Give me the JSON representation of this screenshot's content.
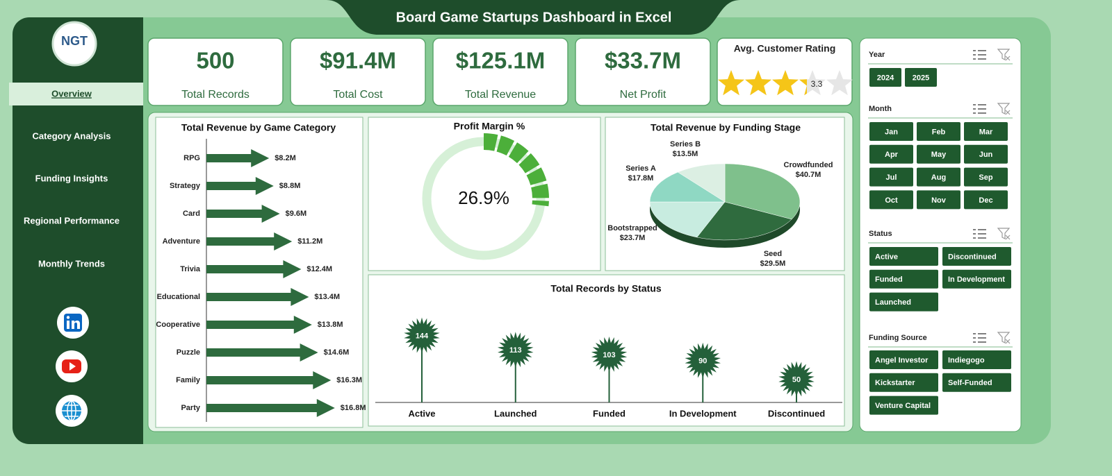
{
  "header": {
    "title": "Board Game Startups Dashboard in Excel",
    "logo": "NGT"
  },
  "nav": [
    "Overview",
    "Category Analysis",
    "Funding Insights",
    "Regional Performance",
    "Monthly Trends"
  ],
  "kpis": [
    {
      "value": "500",
      "label": "Total Records"
    },
    {
      "value": "$91.4M",
      "label": "Total Cost"
    },
    {
      "value": "$125.1M",
      "label": "Total Revenue"
    },
    {
      "value": "$33.7M",
      "label": "Net Profit"
    }
  ],
  "rating": {
    "title": "Avg. Customer Rating",
    "value": 3.3
  },
  "chart_data": [
    {
      "type": "bar",
      "title": "Total Revenue by Game Category",
      "color": "#2e6b3e",
      "categories": [
        "RPG",
        "Strategy",
        "Card",
        "Adventure",
        "Trivia",
        "Educational",
        "Cooperative",
        "Puzzle",
        "Family",
        "Party"
      ],
      "values": [
        8.2,
        8.8,
        9.6,
        11.2,
        12.4,
        13.4,
        13.8,
        14.6,
        16.3,
        16.8
      ],
      "value_labels": [
        "$8.2M",
        "$8.8M",
        "$9.6M",
        "$11.2M",
        "$12.4M",
        "$13.4M",
        "$13.8M",
        "$14.6M",
        "$16.3M",
        "$16.8M"
      ]
    },
    {
      "type": "gauge",
      "title": "Profit Margin %",
      "value": 26.9,
      "value_label": "26.9%",
      "color": "#4caf3a"
    },
    {
      "type": "pie",
      "title": "Total Revenue by Funding Stage",
      "categories": [
        "Crowdfunded",
        "Seed",
        "Bootstrapped",
        "Series A",
        "Series B"
      ],
      "values": [
        40.7,
        29.5,
        23.7,
        17.8,
        13.5
      ],
      "value_labels": [
        "$40.7M",
        "$29.5M",
        "$23.7M",
        "$17.8M",
        "$13.5M"
      ],
      "colors": [
        "#7fc08c",
        "#2f6b3e",
        "#c8ece0",
        "#8fd8c3",
        "#dcefe3"
      ]
    },
    {
      "type": "lollipop",
      "title": "Total Records by Status",
      "color": "#24603a",
      "categories": [
        "Active",
        "Launched",
        "Funded",
        "In Development",
        "Discontinued"
      ],
      "values": [
        144,
        113,
        103,
        90,
        50
      ]
    }
  ],
  "slicers": [
    {
      "title": "Year",
      "items": [
        "2024",
        "2025"
      ]
    },
    {
      "title": "Month",
      "items": [
        "Jan",
        "Feb",
        "Mar",
        "Apr",
        "May",
        "Jun",
        "Jul",
        "Aug",
        "Sep",
        "Oct",
        "Nov",
        "Dec"
      ]
    },
    {
      "title": "Status",
      "items": [
        "Active",
        "Discontinued",
        "Funded",
        "In Development",
        "Launched"
      ]
    },
    {
      "title": "Funding Source",
      "items": [
        "Angel Investor",
        "Indiegogo",
        "Kickstarter",
        "Self-Funded",
        "Venture Capital"
      ]
    }
  ]
}
